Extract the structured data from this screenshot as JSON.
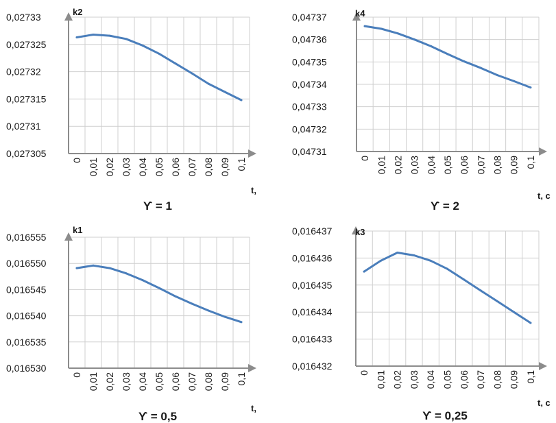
{
  "chart_data": [
    {
      "type": "line",
      "ylabel": "k2",
      "xlabel": "t, ",
      "caption": "ϒ = 1",
      "categories": [
        "0",
        "0,01",
        "0,02",
        "0,03",
        "0,04",
        "0,05",
        "0,06",
        "0,07",
        "0,08",
        "0,09",
        "0,1"
      ],
      "y_ticks": [
        "0,027305",
        "0,02731",
        "0,027315",
        "0,02732",
        "0,027325",
        "0,02733"
      ],
      "ylim": [
        0.027305,
        0.02733
      ],
      "values": [
        0.0273263,
        0.0273268,
        0.0273266,
        0.027326,
        0.0273248,
        0.0273233,
        0.0273215,
        0.0273197,
        0.0273178,
        0.0273163,
        0.0273148
      ],
      "color": "#4a7ebb",
      "grid": true
    },
    {
      "type": "line",
      "ylabel": "k4",
      "xlabel": "t, c",
      "caption": "ϒ = 2",
      "categories": [
        "0",
        "0,01",
        "0,02",
        "0,03",
        "0,04",
        "0,05",
        "0,06",
        "0,07",
        "0,08",
        "0,09",
        "0,1"
      ],
      "y_ticks": [
        "0,04731",
        "0,04732",
        "0,04733",
        "0,04734",
        "0,04735",
        "0,04736",
        "0,04737"
      ],
      "ylim": [
        0.04731,
        0.04737
      ],
      "values": [
        0.047366,
        0.0473648,
        0.0473627,
        0.04736,
        0.047357,
        0.0473535,
        0.0473502,
        0.0473473,
        0.0473441,
        0.0473414,
        0.0473386
      ],
      "color": "#4a7ebb",
      "grid": true
    },
    {
      "type": "line",
      "ylabel": "k1",
      "xlabel": "t,",
      "caption": "ϒ = 0,5",
      "categories": [
        "0",
        "0,01",
        "0,02",
        "0,03",
        "0,04",
        "0,05",
        "0,06",
        "0,07",
        "0,08",
        "0,09",
        "0,1"
      ],
      "y_ticks": [
        "0,016530",
        "0,016535",
        "0,016540",
        "0,016545",
        "0,016550",
        "0,016555"
      ],
      "ylim": [
        0.01653,
        0.016555
      ],
      "values": [
        0.0165491,
        0.0165496,
        0.0165491,
        0.0165481,
        0.0165468,
        0.0165453,
        0.0165437,
        0.0165423,
        0.016541,
        0.0165398,
        0.0165388
      ],
      "color": "#4a7ebb",
      "grid": true
    },
    {
      "type": "line",
      "ylabel": "k3",
      "xlabel": "t, c",
      "caption": "ϒ = 0,25",
      "categories": [
        "0",
        "0,01",
        "0,02",
        "0,03",
        "0,04",
        "0,05",
        "0,06",
        "0,07",
        "0,08",
        "0,09",
        "0,1"
      ],
      "y_ticks": [
        "0,016432",
        "0,016433",
        "0,016434",
        "0,016435",
        "0,016436",
        "0,016437"
      ],
      "ylim": [
        0.016432,
        0.016437
      ],
      "values": [
        0.0164355,
        0.0164359,
        0.0164362,
        0.0164361,
        0.0164359,
        0.0164356,
        0.0164352,
        0.0164348,
        0.0164344,
        0.016434,
        0.0164336
      ],
      "color": "#4a7ebb",
      "grid": true
    }
  ]
}
